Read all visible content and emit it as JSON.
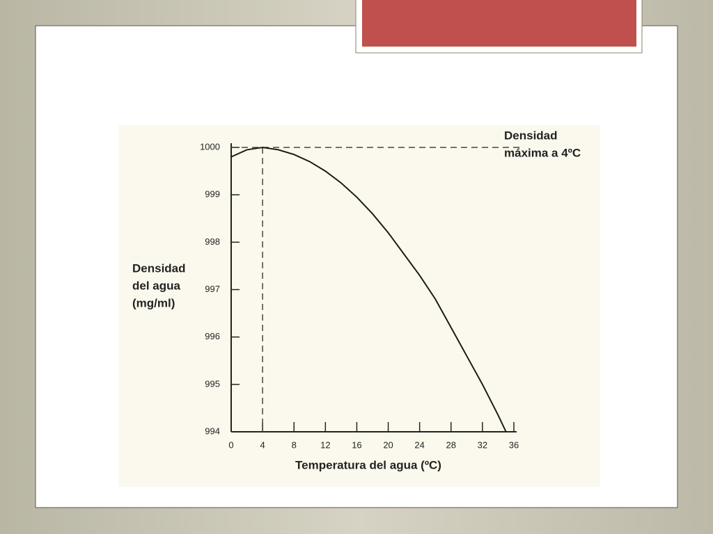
{
  "chart_data": {
    "type": "line",
    "x_label": "Temperatura del agua (ºC)",
    "y_label": [
      "Densidad",
      "del agua",
      "(mg/ml)"
    ],
    "annotation": [
      "Densidad",
      "máxima a 4ºC"
    ],
    "reference": {
      "x": 4,
      "y": 1000
    },
    "x": [
      0,
      2,
      4,
      6,
      8,
      10,
      12,
      14,
      16,
      18,
      20,
      22,
      24,
      26,
      28,
      30,
      32,
      34,
      35
    ],
    "series": [
      {
        "color": "#1a1a1a",
        "values": [
          999.8,
          999.95,
          1000,
          999.95,
          999.85,
          999.7,
          999.5,
          999.25,
          998.95,
          998.6,
          998.2,
          997.75,
          997.3,
          996.8,
          996.2,
          995.6,
          995.0,
          994.35,
          994.0
        ]
      }
    ],
    "xlim": [
      0,
      36
    ],
    "xticks": [
      0,
      4,
      8,
      12,
      16,
      20,
      24,
      28,
      32,
      36
    ],
    "ylim": [
      994,
      1000
    ],
    "yticks": [
      994,
      995,
      996,
      997,
      998,
      999,
      1000
    ]
  }
}
